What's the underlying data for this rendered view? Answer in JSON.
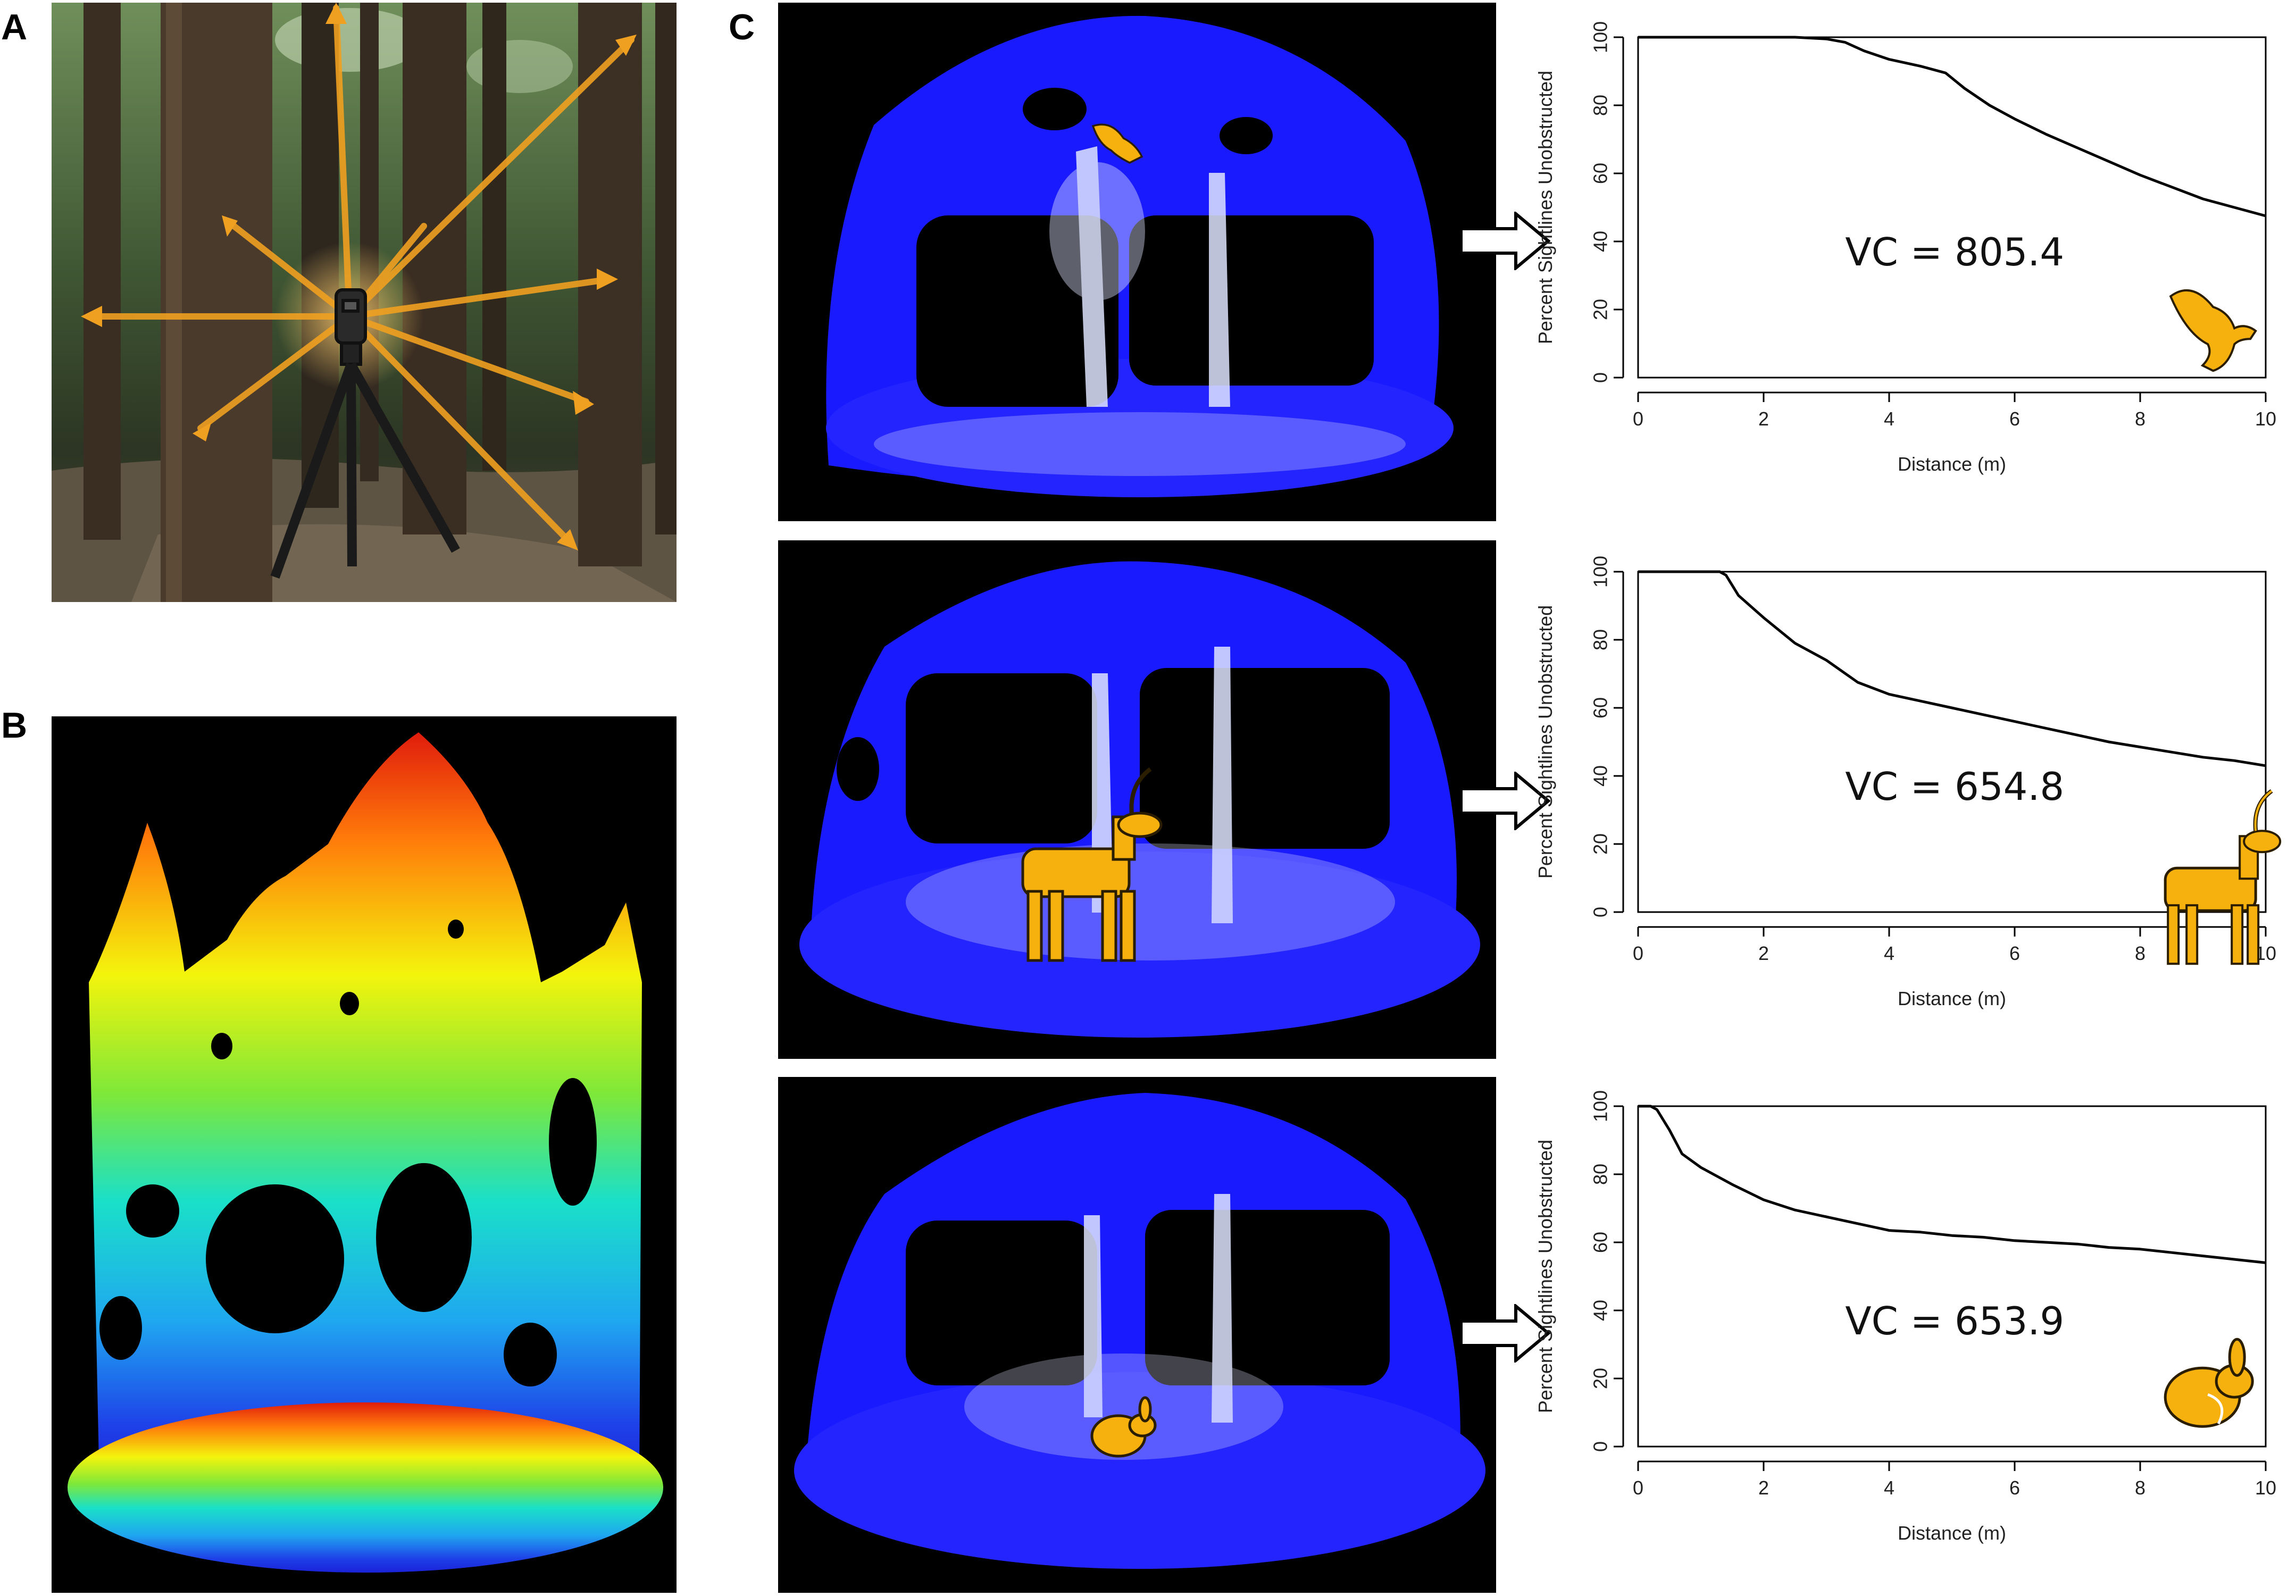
{
  "panel_labels": {
    "a": "A",
    "b": "B",
    "c": "C"
  },
  "colors": {
    "animal_fill": "#f6b10f",
    "animal_stroke": "#2b1d00",
    "laser_beam": "#f0a020",
    "point_cloud_blue": "#1a1aff",
    "point_cloud_white": "#dfe6ff",
    "plot_line": "#000000"
  },
  "icons": {
    "scanner": "lidar-scanner-on-tripod-icon",
    "eagle": "eagle-icon",
    "deer": "deer-icon",
    "rabbit": "rabbit-icon",
    "arrow": "right-arrow-icon"
  },
  "chart_data": [
    {
      "type": "line",
      "animal": "eagle",
      "xlabel": "Distance (m)",
      "ylabel": "Percent Sightlines Unobstructed",
      "annotation": "VC = 805.4",
      "xlim": [
        0,
        10
      ],
      "ylim": [
        0,
        100
      ],
      "xticks": [
        0,
        2,
        4,
        6,
        8,
        10
      ],
      "yticks": [
        0,
        20,
        40,
        60,
        80,
        100
      ],
      "x": [
        0,
        0.5,
        1,
        1.5,
        2,
        2.5,
        3,
        3.3,
        3.6,
        4,
        4.5,
        4.9,
        5.2,
        5.6,
        6,
        6.5,
        7,
        7.5,
        8,
        8.5,
        9,
        9.5,
        10
      ],
      "y": [
        100,
        100,
        100,
        100,
        100,
        100,
        99.5,
        98.5,
        96,
        93.5,
        91.5,
        89.5,
        85,
        80,
        76,
        71.5,
        67.5,
        63.5,
        59.5,
        56,
        52.5,
        50,
        47.5
      ]
    },
    {
      "type": "line",
      "animal": "deer",
      "xlabel": "Distance (m)",
      "ylabel": "Percent Sightlines Unobstructed",
      "annotation": "VC = 654.8",
      "xlim": [
        0,
        10
      ],
      "ylim": [
        0,
        100
      ],
      "xticks": [
        0,
        2,
        4,
        6,
        8,
        10
      ],
      "yticks": [
        0,
        20,
        40,
        60,
        80,
        100
      ],
      "x": [
        0,
        0.5,
        1,
        1.3,
        1.4,
        1.6,
        2,
        2.5,
        3,
        3.5,
        4,
        4.5,
        5,
        5.5,
        6,
        6.5,
        7,
        7.5,
        8,
        8.5,
        9,
        9.5,
        10
      ],
      "y": [
        100,
        100,
        100,
        100,
        99,
        93,
        86.5,
        79,
        74,
        67.5,
        64,
        62,
        60,
        58,
        56,
        54,
        52,
        50,
        48.5,
        47,
        45.5,
        44.5,
        43
      ]
    },
    {
      "type": "line",
      "animal": "rabbit",
      "xlabel": "Distance (m)",
      "ylabel": "Percent Sightlines Unobstructed",
      "annotation": "VC = 653.9",
      "xlim": [
        0,
        10
      ],
      "ylim": [
        0,
        100
      ],
      "xticks": [
        0,
        2,
        4,
        6,
        8,
        10
      ],
      "yticks": [
        0,
        20,
        40,
        60,
        80,
        100
      ],
      "x": [
        0,
        0.2,
        0.3,
        0.5,
        0.7,
        1,
        1.5,
        2,
        2.5,
        3,
        3.5,
        4,
        4.5,
        5,
        5.5,
        6,
        6.5,
        7,
        7.5,
        8,
        8.5,
        9,
        9.5,
        10
      ],
      "y": [
        100,
        100,
        99,
        93,
        86,
        82,
        77,
        72.5,
        69.5,
        67.5,
        65.5,
        63.5,
        63,
        62,
        61.5,
        60.5,
        60,
        59.5,
        58.5,
        58,
        57,
        56,
        55,
        54
      ]
    }
  ]
}
